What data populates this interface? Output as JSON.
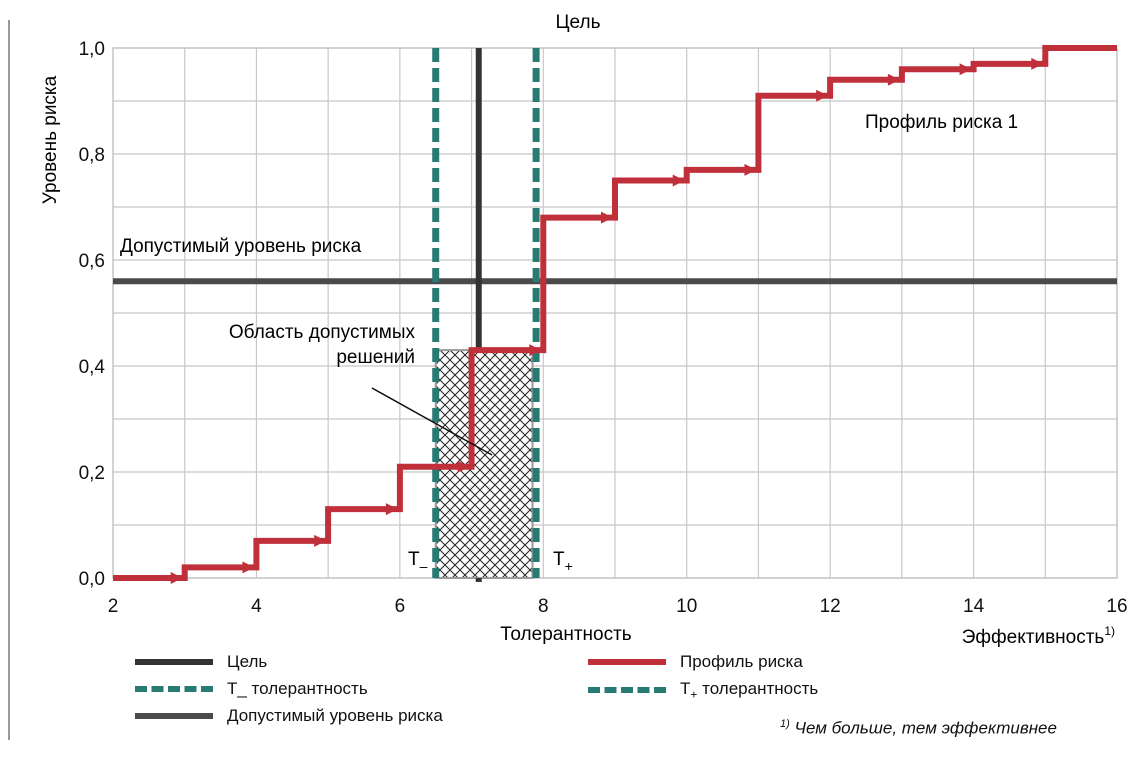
{
  "chart_data": {
    "type": "line",
    "title": "Цель",
    "ylabel": "Уровень риска",
    "xlabel": "Эффективность",
    "xlabel_sup": "1)",
    "xlim": [
      2,
      16
    ],
    "ylim": [
      0,
      1
    ],
    "x_ticks": [
      2,
      4,
      6,
      8,
      10,
      12,
      14,
      16
    ],
    "y_ticks": [
      "0,0",
      "0,2",
      "0,4",
      "0,6",
      "0,8",
      "1,0"
    ],
    "y_tick_values": [
      0,
      0.2,
      0.4,
      0.6,
      0.8,
      1.0
    ],
    "grid": true,
    "series": [
      {
        "name": "Профиль риска",
        "color": "#c0303a",
        "step_points": [
          [
            2,
            0.0
          ],
          [
            3,
            0.0
          ],
          [
            3,
            0.02
          ],
          [
            4,
            0.02
          ],
          [
            4,
            0.07
          ],
          [
            5,
            0.07
          ],
          [
            5,
            0.13
          ],
          [
            6,
            0.13
          ],
          [
            6,
            0.21
          ],
          [
            7,
            0.21
          ],
          [
            7,
            0.43
          ],
          [
            8,
            0.43
          ],
          [
            8,
            0.68
          ],
          [
            9,
            0.68
          ],
          [
            9,
            0.75
          ],
          [
            10,
            0.75
          ],
          [
            10,
            0.77
          ],
          [
            11,
            0.77
          ],
          [
            11,
            0.91
          ],
          [
            12,
            0.91
          ],
          [
            12,
            0.94
          ],
          [
            13,
            0.94
          ],
          [
            13,
            0.96
          ],
          [
            14,
            0.96
          ],
          [
            14,
            0.97
          ],
          [
            15,
            0.97
          ],
          [
            15,
            1.0
          ],
          [
            16,
            1.0
          ]
        ]
      }
    ],
    "target_x": 7.1,
    "t_minus_x": 6.5,
    "t_plus_x": 7.9,
    "acceptable_risk_y": 0.56,
    "feasible_region": {
      "x": [
        6.5,
        7.85
      ],
      "y": [
        0,
        0.43
      ]
    },
    "annotations": {
      "acceptable_risk_label": "Допустимый уровень риска",
      "feasible_region_label_line1": "Область допустимых",
      "feasible_region_label_line2": "решений",
      "profile_label": "Профиль риска 1",
      "t_minus_label": "T",
      "t_minus_sub": "–",
      "t_plus_label": "T",
      "t_plus_sub": "+",
      "tolerance_label": "Толерантность"
    },
    "colors": {
      "target": "#333333",
      "tolerance": "#2a7a74",
      "risk_level": "#4a4a4a",
      "profile": "#c0303a",
      "grid": "#c8c8c8"
    }
  },
  "legend": {
    "target": "Цель",
    "profile": "Профиль риска",
    "t_minus": "T_ толерантность",
    "t_plus_main": "T",
    "t_plus_sub": "+",
    "t_plus_rest": " толерантность",
    "risk_level": "Допустимый уровень риска"
  },
  "footnote": {
    "mark": "1)",
    "text": " Чем больше, тем эффективнее"
  }
}
